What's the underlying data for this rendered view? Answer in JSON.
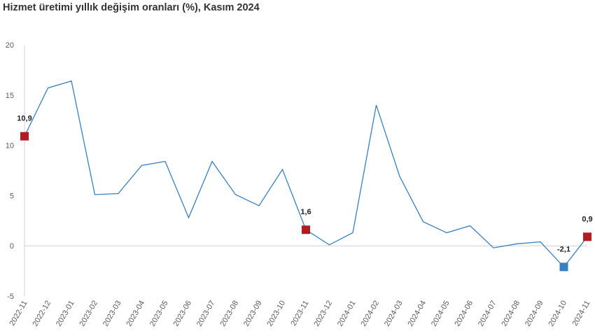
{
  "chart_data": {
    "type": "line",
    "title": "Hizmet üretimi yıllık değişim oranları (%), Kasım 2024",
    "xlabel": "",
    "ylabel": "",
    "ylim": [
      -5,
      20
    ],
    "yticks": [
      "20",
      "15",
      "10",
      "5",
      "0",
      "-5"
    ],
    "grid": false,
    "legend": "none",
    "categories": [
      "2022-11",
      "2022-12",
      "2023-01",
      "2023-02",
      "2023-03",
      "2023-04",
      "2023-05",
      "2023-06",
      "2023-07",
      "2023-08",
      "2023-09",
      "2023-10",
      "2023-11",
      "2023-12",
      "2024-01",
      "2024-02",
      "2024-03",
      "2024-04",
      "2024-05",
      "2024-06",
      "2024-07",
      "2024-08",
      "2024-09",
      "2024-10",
      "2024-11"
    ],
    "series": [
      {
        "values": [
          10.9,
          15.7,
          16.4,
          5.1,
          5.2,
          8.0,
          8.4,
          2.8,
          8.4,
          5.1,
          4.0,
          7.6,
          1.6,
          0.1,
          1.3,
          14.0,
          6.9,
          2.4,
          1.3,
          2.0,
          -0.2,
          0.2,
          0.4,
          -2.1,
          0.9
        ]
      }
    ],
    "highlights": [
      {
        "index": 0,
        "label": "10,9",
        "color": "#b01c24"
      },
      {
        "index": 12,
        "label": "1,6",
        "color": "#b01c24"
      },
      {
        "index": 23,
        "label": "-2,1",
        "color": "#3a7fc0"
      },
      {
        "index": 24,
        "label": "0,9",
        "color": "#b01c24"
      }
    ],
    "line_color": "#3a7fc0",
    "axis_color": "#d0d0d0"
  }
}
